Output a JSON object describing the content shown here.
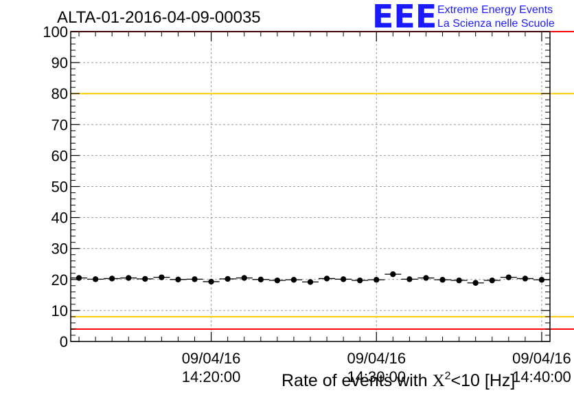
{
  "header": {
    "title": "ALTA-01-2016-04-09-00035",
    "logo_mark": "EEE",
    "logo_line1": "Extreme Energy Events",
    "logo_line2": "La Scienza nelle Scuole"
  },
  "chart_data": {
    "type": "scatter",
    "title": "ALTA-01-2016-04-09-00035",
    "xlabel_parts": [
      "Rate of events with ",
      "X",
      "2",
      "<10 [Hz]"
    ],
    "ylabel": "",
    "ylim": [
      0,
      100
    ],
    "y_ticks": [
      "0",
      "10",
      "20",
      "30",
      "40",
      "50",
      "60",
      "70",
      "80",
      "90",
      "100"
    ],
    "x_range_minutes": [
      -8.5,
      20.5
    ],
    "x_ticks": [
      {
        "date": "09/04/16",
        "time": "14:20:00",
        "minute": 0
      },
      {
        "date": "09/04/16",
        "time": "14:30:00",
        "minute": 10
      },
      {
        "date": "09/04/16",
        "time": "14:40:00",
        "minute": 20
      }
    ],
    "grid": true,
    "reference_lines": [
      {
        "y": 100,
        "color": "#ff0000"
      },
      {
        "y": 80,
        "color": "#ffcc00"
      },
      {
        "y": 8,
        "color": "#ffcc00"
      },
      {
        "y": 4,
        "color": "#ff0000"
      }
    ],
    "series": [
      {
        "x_minutes": [
          -8.0,
          -7.0,
          -6.0,
          -5.0,
          -4.0,
          -3.0,
          -2.0,
          -1.0,
          0.0,
          1.0,
          2.0,
          3.0,
          4.0,
          5.0,
          6.0,
          7.0,
          8.0,
          9.0,
          10.0,
          11.0,
          12.0,
          13.0,
          14.0,
          15.0,
          16.0,
          17.0,
          18.0,
          19.0,
          20.0
        ],
        "values": [
          20.5,
          20.1,
          20.3,
          20.5,
          20.2,
          20.7,
          20.0,
          20.1,
          19.3,
          20.2,
          20.5,
          20.0,
          19.7,
          19.9,
          19.2,
          20.3,
          20.1,
          19.7,
          19.9,
          21.7,
          20.1,
          20.5,
          19.9,
          19.7,
          18.9,
          19.7,
          20.7,
          20.3,
          19.9
        ],
        "errors": [
          0.6,
          0.6,
          0.6,
          0.6,
          0.6,
          0.6,
          0.6,
          0.6,
          0.6,
          0.6,
          0.6,
          0.6,
          0.6,
          0.6,
          0.6,
          0.6,
          0.6,
          0.6,
          0.6,
          0.6,
          0.6,
          0.6,
          0.6,
          0.6,
          0.6,
          0.6,
          0.6,
          0.6,
          0.6
        ],
        "color": "#000000"
      }
    ]
  }
}
